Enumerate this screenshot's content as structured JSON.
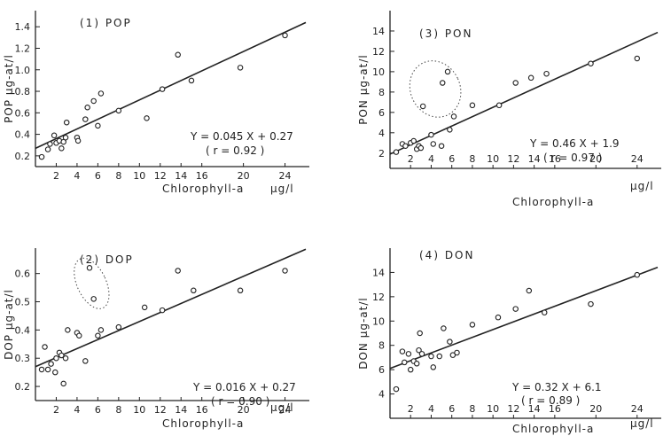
{
  "chart_data": [
    {
      "type": "scatter",
      "title": "(1) POP",
      "xlabel": "Chlorophyll-a",
      "xunit": "μg/l",
      "ylabel": "POP μg-at/l",
      "xlim": [
        0,
        26
      ],
      "ylim": [
        0.1,
        1.55
      ],
      "xticks": [
        2,
        4,
        6,
        8,
        10,
        12,
        14,
        16,
        20,
        24
      ],
      "yticks": [
        0.2,
        0.4,
        0.6,
        0.8,
        1.0,
        1.2,
        1.4
      ],
      "ytick_labels": [
        "0.2",
        "0.4",
        "0.6",
        "0.8",
        "1.0",
        "1.2",
        "1.4"
      ],
      "equation": "Y = 0.045 X + 0.27",
      "r_text": "( r = 0.92 )",
      "fit": {
        "slope": 0.045,
        "intercept": 0.27
      },
      "points": [
        [
          0.6,
          0.19
        ],
        [
          1.2,
          0.26
        ],
        [
          1.4,
          0.31
        ],
        [
          1.8,
          0.39
        ],
        [
          2.0,
          0.32
        ],
        [
          2.3,
          0.34
        ],
        [
          2.5,
          0.27
        ],
        [
          2.7,
          0.33
        ],
        [
          2.9,
          0.37
        ],
        [
          3.0,
          0.51
        ],
        [
          4.0,
          0.37
        ],
        [
          4.1,
          0.34
        ],
        [
          4.8,
          0.54
        ],
        [
          5.0,
          0.65
        ],
        [
          5.6,
          0.71
        ],
        [
          6.0,
          0.48
        ],
        [
          6.3,
          0.78
        ],
        [
          8.0,
          0.62
        ],
        [
          10.7,
          0.55
        ],
        [
          12.2,
          0.82
        ],
        [
          13.7,
          1.14
        ],
        [
          15.0,
          0.9
        ],
        [
          19.7,
          1.02
        ],
        [
          24.0,
          1.32
        ]
      ],
      "outlier_points": []
    },
    {
      "type": "scatter",
      "title": "(3) PON",
      "xlabel": "Chlorophyll-a",
      "xunit": "μg/l",
      "ylabel": "PON μg-at/l",
      "xlim": [
        0,
        26
      ],
      "ylim": [
        0.5,
        16
      ],
      "xticks": [
        2,
        4,
        6,
        8,
        10,
        12,
        14,
        16,
        20,
        24
      ],
      "yticks": [
        2,
        4,
        6,
        8,
        10,
        12,
        14
      ],
      "ytick_labels": [
        "2",
        "4",
        "6",
        "8",
        "10",
        "12",
        "14"
      ],
      "equation": "Y = 0.46 X + 1.9",
      "r_text": "( r = 0.97 )",
      "fit": {
        "slope": 0.46,
        "intercept": 1.9
      },
      "points": [
        [
          0.6,
          2.1
        ],
        [
          1.2,
          2.9
        ],
        [
          1.5,
          2.7
        ],
        [
          2.0,
          3.0
        ],
        [
          2.3,
          3.2
        ],
        [
          2.6,
          2.4
        ],
        [
          2.8,
          2.7
        ],
        [
          3.0,
          2.5
        ],
        [
          4.0,
          3.8
        ],
        [
          4.2,
          2.9
        ],
        [
          5.0,
          2.7
        ],
        [
          5.8,
          4.3
        ],
        [
          6.2,
          5.6
        ],
        [
          8.0,
          6.7
        ],
        [
          10.6,
          6.7
        ],
        [
          12.2,
          8.9
        ],
        [
          13.7,
          9.4
        ],
        [
          15.2,
          9.8
        ],
        [
          19.5,
          10.8
        ],
        [
          24.0,
          11.3
        ]
      ],
      "outlier_points": [
        [
          3.2,
          6.6
        ],
        [
          5.1,
          8.9
        ],
        [
          5.6,
          10.0
        ]
      ]
    },
    {
      "type": "scatter",
      "title": "(2) DOP",
      "xlabel": "Chlorophyll-a",
      "xunit": "μg/l",
      "ylabel": "DOP μg-at/l",
      "xlim": [
        0,
        26
      ],
      "ylim": [
        0.15,
        0.69
      ],
      "xticks": [
        2,
        4,
        6,
        8,
        10,
        12,
        14,
        16,
        20,
        24
      ],
      "yticks": [
        0.2,
        0.3,
        0.4,
        0.5,
        0.6
      ],
      "ytick_labels": [
        "0.2",
        "0.3",
        "0.4",
        "0.5",
        "0.6"
      ],
      "equation": "Y = 0.016 X + 0.27",
      "r_text": "( r = 0.90 )",
      "fit": {
        "slope": 0.016,
        "intercept": 0.27
      },
      "points": [
        [
          0.6,
          0.26
        ],
        [
          0.9,
          0.34
        ],
        [
          1.2,
          0.26
        ],
        [
          1.5,
          0.28
        ],
        [
          1.9,
          0.25
        ],
        [
          2.0,
          0.3
        ],
        [
          2.3,
          0.32
        ],
        [
          2.5,
          0.31
        ],
        [
          2.7,
          0.21
        ],
        [
          2.9,
          0.3
        ],
        [
          3.1,
          0.4
        ],
        [
          4.0,
          0.39
        ],
        [
          4.2,
          0.38
        ],
        [
          4.8,
          0.29
        ],
        [
          6.0,
          0.38
        ],
        [
          6.3,
          0.4
        ],
        [
          8.0,
          0.41
        ],
        [
          10.5,
          0.48
        ],
        [
          12.2,
          0.47
        ],
        [
          13.7,
          0.61
        ],
        [
          15.2,
          0.54
        ],
        [
          19.7,
          0.54
        ],
        [
          24.0,
          0.61
        ]
      ],
      "outlier_points": [
        [
          5.2,
          0.62
        ],
        [
          5.6,
          0.51
        ]
      ]
    },
    {
      "type": "scatter",
      "title": "(4) DON",
      "xlabel": "Chlorophyll-a",
      "xunit": "μg/l",
      "ylabel": "DON μg-at/l",
      "xlim": [
        0,
        26
      ],
      "ylim": [
        2.0,
        16
      ],
      "xticks": [
        2,
        4,
        6,
        8,
        10,
        12,
        14,
        16,
        20,
        24
      ],
      "yticks": [
        4,
        6,
        8,
        10,
        12,
        14
      ],
      "ytick_labels": [
        "4",
        "6",
        "8",
        "10",
        "12",
        "14"
      ],
      "equation": "Y = 0.32 X + 6.1",
      "r_text": "( r = 0.89 )",
      "fit": {
        "slope": 0.32,
        "intercept": 6.1
      },
      "points": [
        [
          0.6,
          4.4
        ],
        [
          1.2,
          7.5
        ],
        [
          1.4,
          6.6
        ],
        [
          1.8,
          7.3
        ],
        [
          2.0,
          6.0
        ],
        [
          2.3,
          6.7
        ],
        [
          2.6,
          6.5
        ],
        [
          2.8,
          7.6
        ],
        [
          2.9,
          9.0
        ],
        [
          3.1,
          7.3
        ],
        [
          4.0,
          7.1
        ],
        [
          4.2,
          6.2
        ],
        [
          4.8,
          7.1
        ],
        [
          5.2,
          9.4
        ],
        [
          5.8,
          8.3
        ],
        [
          6.1,
          7.2
        ],
        [
          6.5,
          7.4
        ],
        [
          8.0,
          9.7
        ],
        [
          10.5,
          10.3
        ],
        [
          12.2,
          11.0
        ],
        [
          13.5,
          12.5
        ],
        [
          15.0,
          10.7
        ],
        [
          19.5,
          11.4
        ],
        [
          24.0,
          13.8
        ]
      ],
      "outlier_points": []
    }
  ]
}
